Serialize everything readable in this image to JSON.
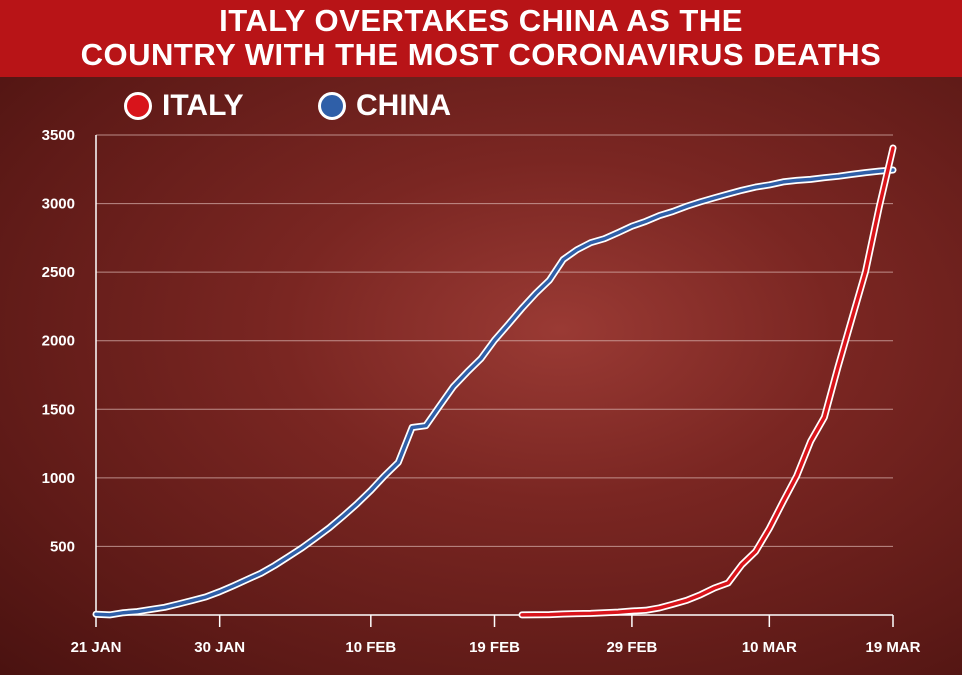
{
  "title": {
    "line1": "ITALY OVERTAKES CHINA AS THE",
    "line2": "COUNTRY WITH THE MOST CORONAVIRUS DEATHS"
  },
  "legend": [
    {
      "label": "ITALY",
      "color": "#d8141b"
    },
    {
      "label": "CHINA",
      "color": "#2f5fa8"
    }
  ],
  "colors": {
    "title_bar": "#b81417",
    "background": "#6e1f1c",
    "gridline": "#d8b2ae"
  },
  "chart_data": {
    "type": "line",
    "title": "ITALY OVERTAKES CHINA AS THE COUNTRY WITH THE MOST CORONAVIRUS DEATHS",
    "xlabel": "",
    "ylabel": "",
    "x_ticks": [
      "21 JAN",
      "30 JAN",
      "10 FEB",
      "19 FEB",
      "29 FEB",
      "10 MAR",
      "19 MAR"
    ],
    "y_ticks": [
      500,
      1000,
      1500,
      2000,
      2500,
      3000,
      3500
    ],
    "ylim": [
      0,
      3500
    ],
    "grid": true,
    "legend_position": "top-left",
    "series": [
      {
        "name": "CHINA",
        "x": [
          "21 Jan",
          "22 Jan",
          "23 Jan",
          "24 Jan",
          "25 Jan",
          "26 Jan",
          "27 Jan",
          "28 Jan",
          "29 Jan",
          "30 Jan",
          "31 Jan",
          "1 Feb",
          "2 Feb",
          "3 Feb",
          "4 Feb",
          "5 Feb",
          "6 Feb",
          "7 Feb",
          "8 Feb",
          "9 Feb",
          "10 Feb",
          "11 Feb",
          "12 Feb",
          "13 Feb",
          "14 Feb",
          "15 Feb",
          "16 Feb",
          "17 Feb",
          "18 Feb",
          "19 Feb",
          "20 Feb",
          "21 Feb",
          "22 Feb",
          "23 Feb",
          "24 Feb",
          "25 Feb",
          "26 Feb",
          "27 Feb",
          "28 Feb",
          "29 Feb",
          "1 Mar",
          "2 Mar",
          "3 Mar",
          "4 Mar",
          "5 Mar",
          "6 Mar",
          "7 Mar",
          "8 Mar",
          "9 Mar",
          "10 Mar",
          "11 Mar",
          "12 Mar",
          "13 Mar",
          "14 Mar",
          "15 Mar",
          "16 Mar",
          "17 Mar",
          "18 Mar",
          "19 Mar"
        ],
        "values": [
          6,
          1,
          17,
          25,
          41,
          56,
          80,
          106,
          132,
          170,
          213,
          259,
          304,
          361,
          425,
          490,
          563,
          637,
          722,
          811,
          908,
          1016,
          1113,
          1367,
          1380,
          1523,
          1665,
          1770,
          1868,
          2004,
          2118,
          2236,
          2345,
          2442,
          2592,
          2663,
          2715,
          2744,
          2788,
          2835,
          2870,
          2912,
          2943,
          2981,
          3013,
          3042,
          3070,
          3097,
          3120,
          3136,
          3158,
          3169,
          3176,
          3189,
          3199,
          3213,
          3226,
          3237,
          3245
        ],
        "color": "#2f5fa8"
      },
      {
        "name": "ITALY",
        "x": [
          "21 Feb",
          "22 Feb",
          "23 Feb",
          "24 Feb",
          "25 Feb",
          "26 Feb",
          "27 Feb",
          "28 Feb",
          "29 Feb",
          "1 Mar",
          "2 Mar",
          "3 Mar",
          "4 Mar",
          "5 Mar",
          "6 Mar",
          "7 Mar",
          "8 Mar",
          "9 Mar",
          "10 Mar",
          "11 Mar",
          "12 Mar",
          "13 Mar",
          "14 Mar",
          "15 Mar",
          "16 Mar",
          "17 Mar",
          "18 Mar",
          "19 Mar"
        ],
        "values": [
          1,
          2,
          3,
          7,
          10,
          12,
          17,
          21,
          29,
          34,
          52,
          79,
          107,
          148,
          197,
          233,
          366,
          463,
          631,
          827,
          1016,
          1266,
          1441,
          1809,
          2158,
          2503,
          2978,
          3405
        ],
        "color": "#d8141b"
      }
    ]
  }
}
